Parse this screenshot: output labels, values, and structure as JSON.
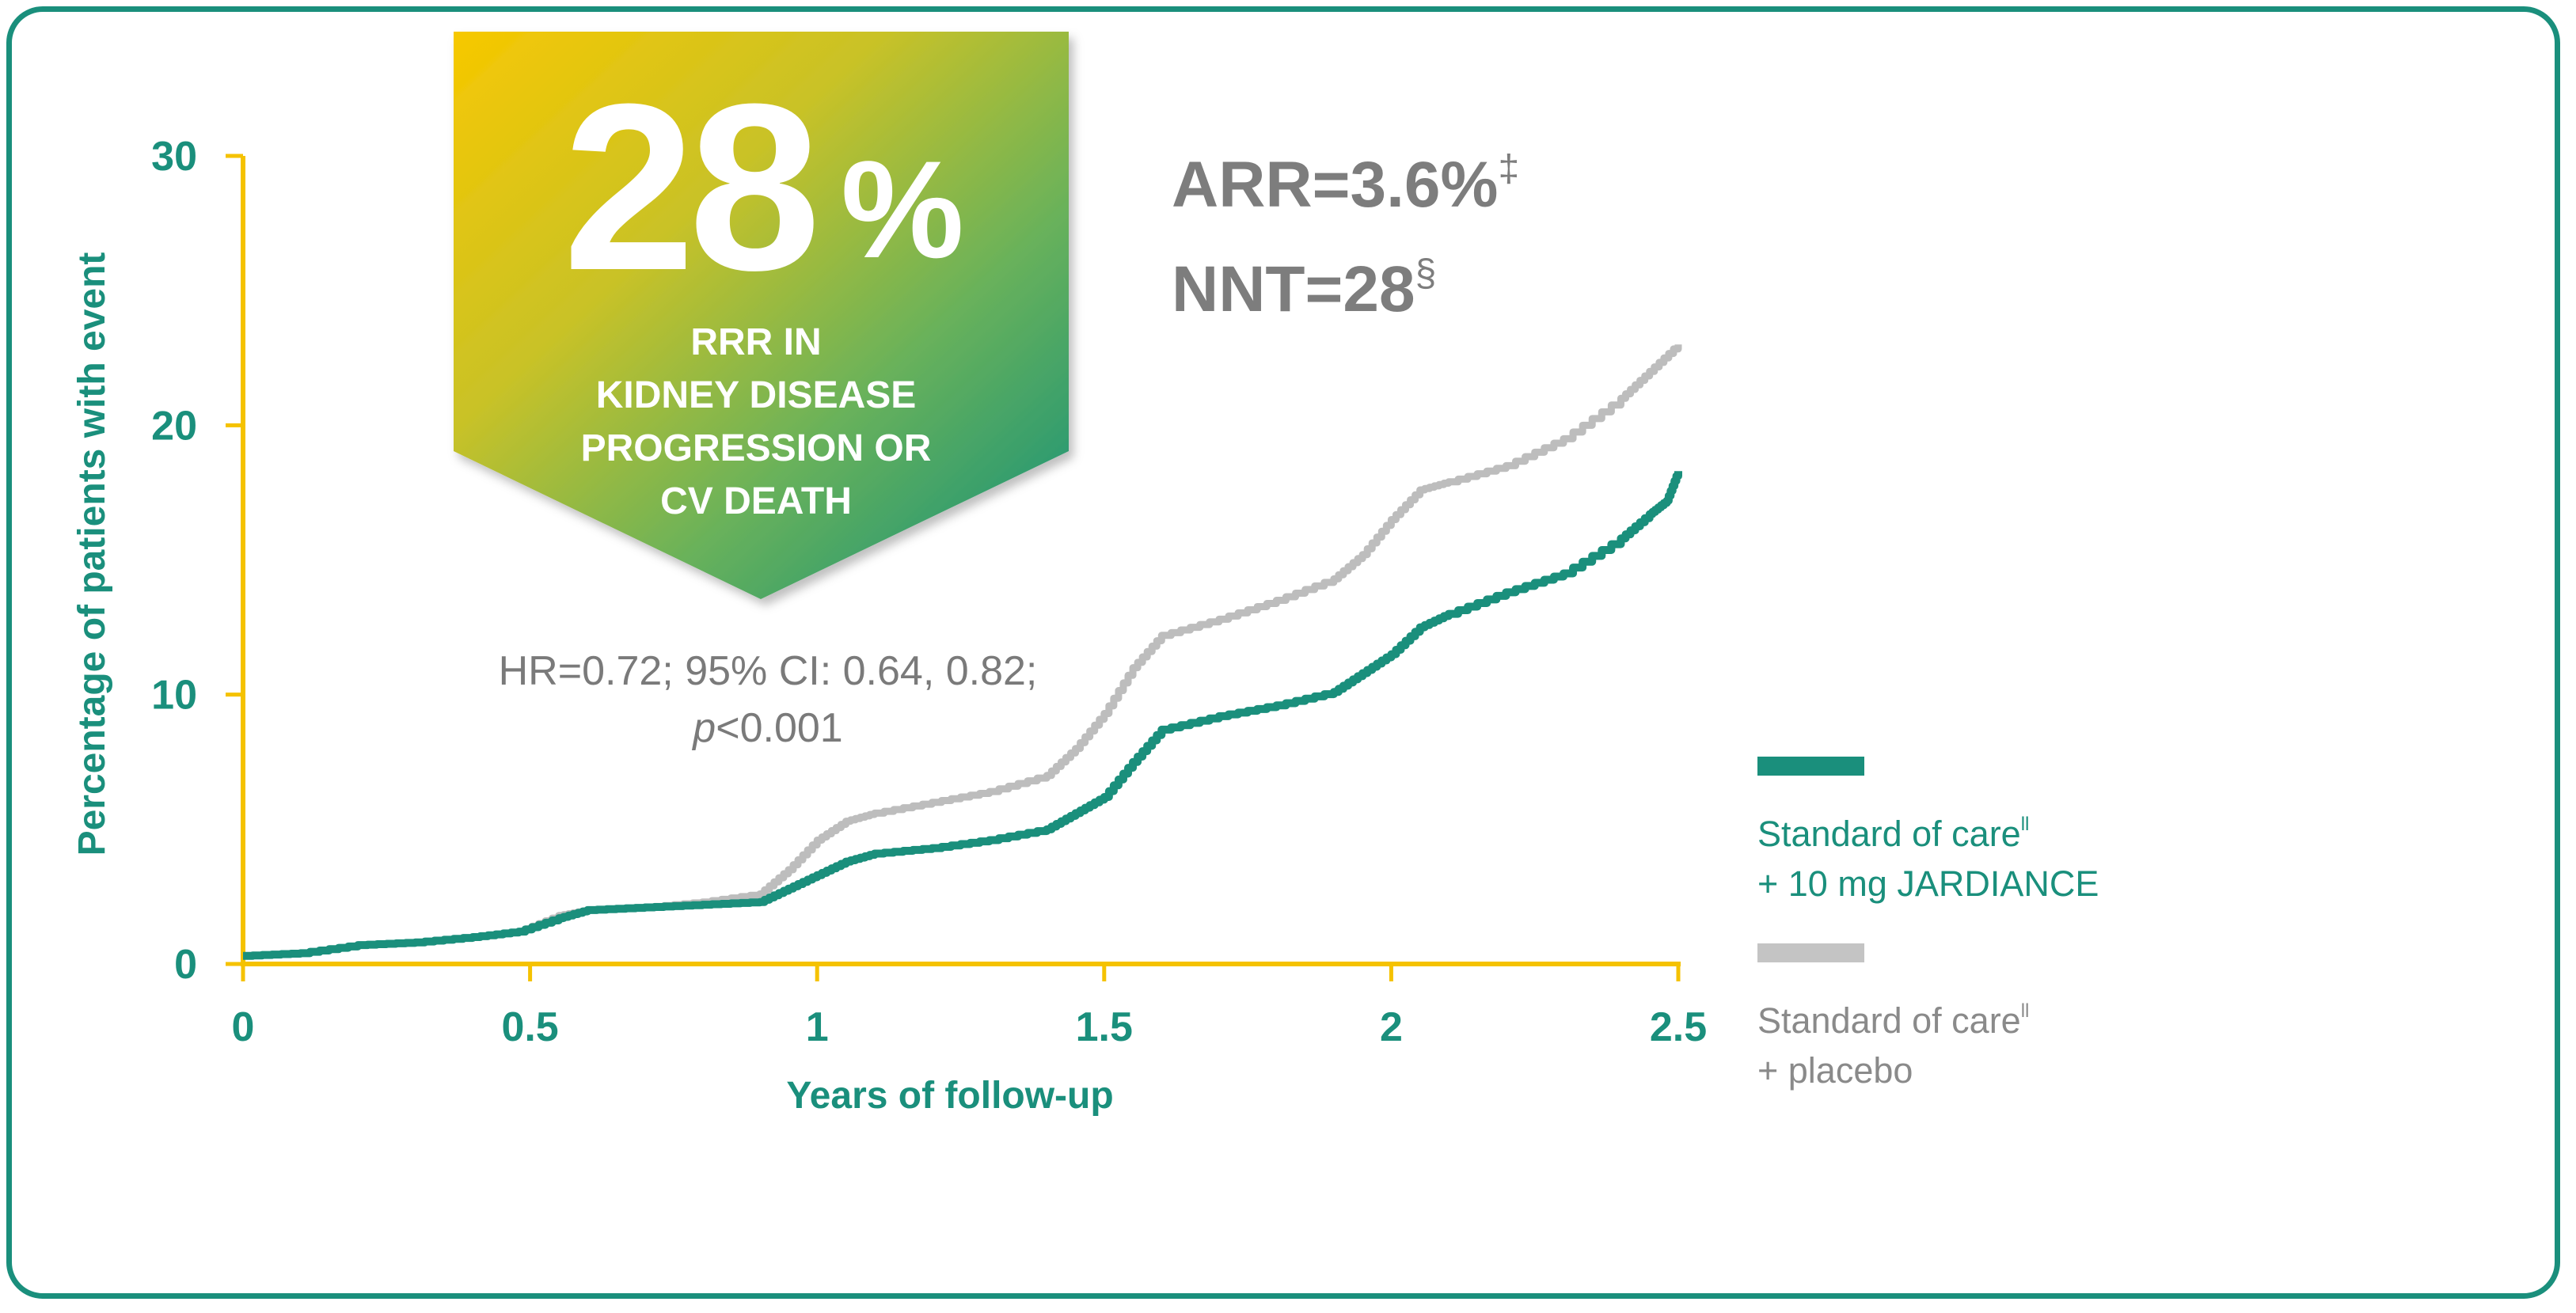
{
  "chart_data": {
    "type": "line",
    "title": "",
    "xlabel": "Years of follow-up",
    "ylabel": "Percentage of patients with event",
    "xlim": [
      0,
      2.5
    ],
    "ylim": [
      0,
      30
    ],
    "xticks": [
      "0",
      "0.5",
      "1",
      "1.5",
      "2",
      "2.5"
    ],
    "yticks": [
      "0",
      "10",
      "20",
      "30"
    ],
    "grid": false,
    "legend_position": "right",
    "series": [
      {
        "name": "Standard of care + placebo",
        "color": "#bdbdbd",
        "points": [
          [
            0,
            0.3
          ],
          [
            0.1,
            0.4
          ],
          [
            0.2,
            0.7
          ],
          [
            0.3,
            0.8
          ],
          [
            0.4,
            1.0
          ],
          [
            0.48,
            1.2
          ],
          [
            0.55,
            1.8
          ],
          [
            0.6,
            2.0
          ],
          [
            0.7,
            2.1
          ],
          [
            0.8,
            2.3
          ],
          [
            0.9,
            2.6
          ],
          [
            0.95,
            3.5
          ],
          [
            1.0,
            4.6
          ],
          [
            1.05,
            5.3
          ],
          [
            1.1,
            5.6
          ],
          [
            1.2,
            6.0
          ],
          [
            1.3,
            6.4
          ],
          [
            1.4,
            7.0
          ],
          [
            1.45,
            8.0
          ],
          [
            1.5,
            9.3
          ],
          [
            1.55,
            11.0
          ],
          [
            1.6,
            12.2
          ],
          [
            1.7,
            12.8
          ],
          [
            1.8,
            13.5
          ],
          [
            1.9,
            14.3
          ],
          [
            1.95,
            15.2
          ],
          [
            2.0,
            16.5
          ],
          [
            2.05,
            17.6
          ],
          [
            2.1,
            17.9
          ],
          [
            2.2,
            18.5
          ],
          [
            2.3,
            19.5
          ],
          [
            2.4,
            21.0
          ],
          [
            2.45,
            22.0
          ],
          [
            2.5,
            23.0
          ]
        ]
      },
      {
        "name": "Standard of care + 10 mg JARDIANCE",
        "color": "#1a8f7c",
        "points": [
          [
            0,
            0.3
          ],
          [
            0.1,
            0.4
          ],
          [
            0.2,
            0.7
          ],
          [
            0.3,
            0.8
          ],
          [
            0.4,
            1.0
          ],
          [
            0.48,
            1.2
          ],
          [
            0.55,
            1.7
          ],
          [
            0.6,
            2.0
          ],
          [
            0.7,
            2.1
          ],
          [
            0.8,
            2.2
          ],
          [
            0.9,
            2.3
          ],
          [
            0.95,
            2.8
          ],
          [
            1.0,
            3.3
          ],
          [
            1.05,
            3.8
          ],
          [
            1.1,
            4.1
          ],
          [
            1.2,
            4.3
          ],
          [
            1.3,
            4.6
          ],
          [
            1.4,
            5.0
          ],
          [
            1.45,
            5.6
          ],
          [
            1.5,
            6.2
          ],
          [
            1.55,
            7.5
          ],
          [
            1.6,
            8.7
          ],
          [
            1.7,
            9.2
          ],
          [
            1.8,
            9.6
          ],
          [
            1.9,
            10.1
          ],
          [
            1.95,
            10.8
          ],
          [
            2.0,
            11.5
          ],
          [
            2.05,
            12.5
          ],
          [
            2.1,
            13.0
          ],
          [
            2.2,
            13.8
          ],
          [
            2.3,
            14.5
          ],
          [
            2.4,
            15.8
          ],
          [
            2.45,
            16.7
          ],
          [
            2.48,
            17.2
          ],
          [
            2.5,
            18.3
          ]
        ]
      }
    ]
  },
  "badge": {
    "value": "28",
    "unit": "%",
    "lines": [
      "RRR IN",
      "KIDNEY DISEASE",
      "PROGRESSION OR",
      "CV DEATH"
    ]
  },
  "hr": {
    "line1": "HR=0.72; 95% CI: 0.64, 0.82;",
    "p_label": "p",
    "p_value": "<0.001"
  },
  "stats": {
    "arr": "ARR=3.6%",
    "arr_mark": "‡",
    "nnt": "NNT=28",
    "nnt_mark": "§"
  },
  "legend": {
    "jardiance": {
      "line1": "Standard of care",
      "mark": "ll",
      "line2": "+ 10 mg JARDIANCE",
      "color": "#1a8f7c"
    },
    "placebo": {
      "line1": "Standard of care",
      "mark": "ll",
      "line2": "+ placebo",
      "color": "#9e9e9e",
      "swatch": "#c4c4c4"
    }
  },
  "colors": {
    "teal": "#1a8f7c",
    "yellow": "#f5c200",
    "gray": "#7d7d7d"
  }
}
